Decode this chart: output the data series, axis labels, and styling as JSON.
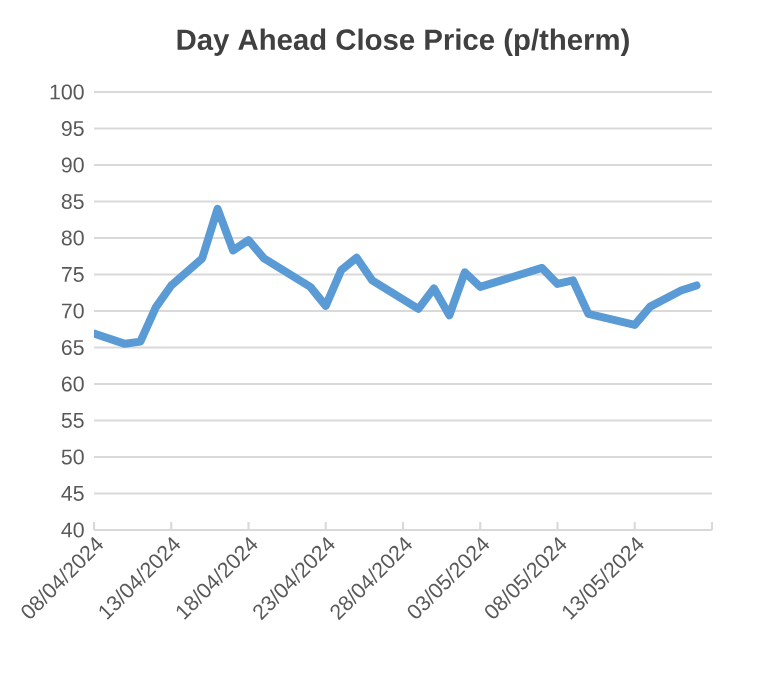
{
  "chart_data": {
    "type": "line",
    "title": "Day Ahead Close Price (p/therm)",
    "x": [
      "2024-04-08",
      "2024-04-10",
      "2024-04-11",
      "2024-04-12",
      "2024-04-13",
      "2024-04-15",
      "2024-04-16",
      "2024-04-17",
      "2024-04-18",
      "2024-04-19",
      "2024-04-22",
      "2024-04-23",
      "2024-04-24",
      "2024-04-25",
      "2024-04-26",
      "2024-04-29",
      "2024-04-30",
      "2024-05-01",
      "2024-05-02",
      "2024-05-03",
      "2024-05-07",
      "2024-05-08",
      "2024-05-09",
      "2024-05-10",
      "2024-05-13",
      "2024-05-14",
      "2024-05-16",
      "2024-05-17"
    ],
    "series": [
      {
        "color": "#5b9bd5",
        "values": [
          66.9,
          65.5,
          65.8,
          70.5,
          73.5,
          77.2,
          84.0,
          78.3,
          79.7,
          77.2,
          73.3,
          70.7,
          75.6,
          77.3,
          74.2,
          70.3,
          73.1,
          69.4,
          75.3,
          73.3,
          75.9,
          73.7,
          74.2,
          69.6,
          68.1,
          70.6,
          72.8,
          73.5
        ]
      }
    ],
    "xlim": [
      "2024-04-08",
      "2024-05-18"
    ],
    "xticks": [
      {
        "value": "2024-04-08",
        "label": "08/04/2024"
      },
      {
        "value": "2024-04-13",
        "label": "13/04/2024"
      },
      {
        "value": "2024-04-18",
        "label": "18/04/2024"
      },
      {
        "value": "2024-04-23",
        "label": "23/04/2024"
      },
      {
        "value": "2024-04-28",
        "label": "28/04/2024"
      },
      {
        "value": "2024-05-03",
        "label": "03/05/2024"
      },
      {
        "value": "2024-05-08",
        "label": "08/05/2024"
      },
      {
        "value": "2024-05-13",
        "label": "13/05/2024"
      },
      {
        "value": "2024-05-18",
        "label": null
      }
    ],
    "ylim": [
      40,
      100
    ],
    "yticks": [
      40,
      45,
      50,
      55,
      60,
      65,
      70,
      75,
      80,
      85,
      90,
      95,
      100
    ],
    "grid": "y"
  }
}
